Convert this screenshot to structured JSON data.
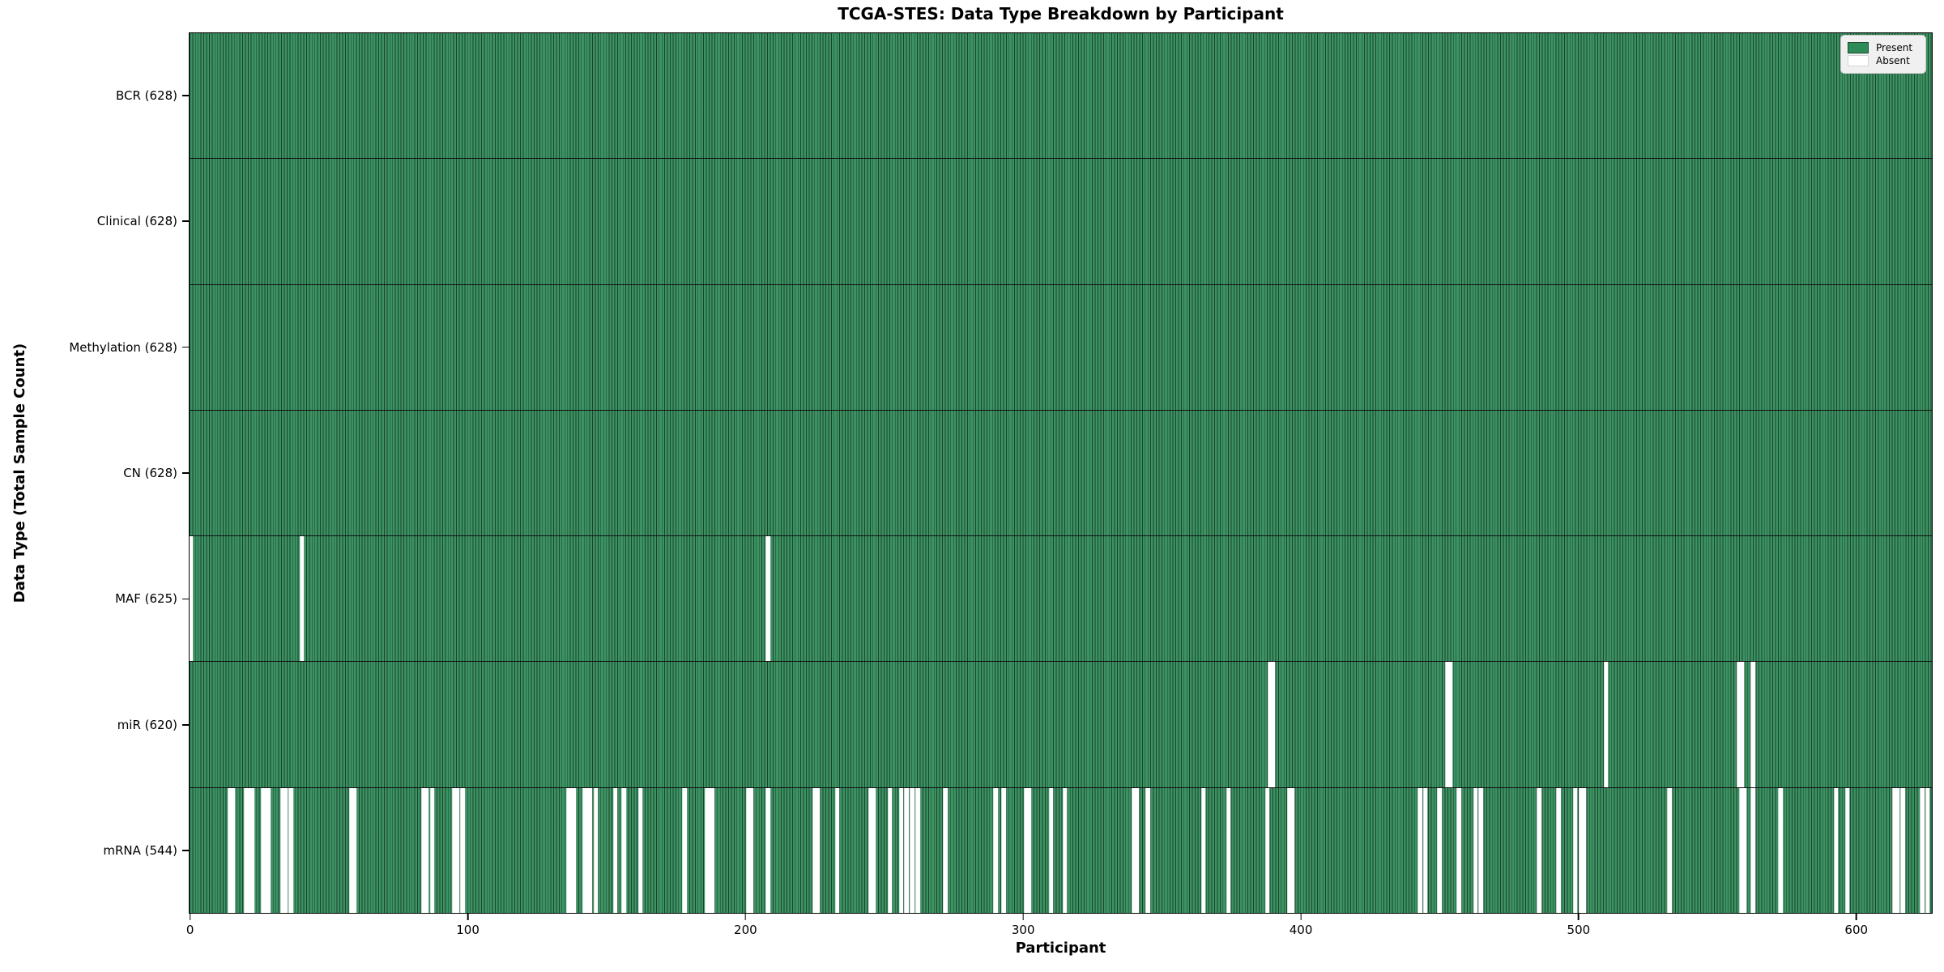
{
  "title": "TCGA-STES: Data Type Breakdown by Participant",
  "x_axis_label": "Participant",
  "y_axis_label": "Data Type (Total Sample Count)",
  "legend": {
    "present_label": "Present",
    "absent_label": "Absent"
  },
  "colors": {
    "present": "#2e8b57",
    "absent": "#ffffff",
    "bar_edge": "#102e1c",
    "row_separator": "#101010",
    "legend_bg": "#f0f0f0"
  },
  "chart_data": {
    "type": "heatmap",
    "title": "TCGA-STES: Data Type Breakdown by Participant",
    "xlabel": "Participant",
    "ylabel": "Data Type (Total Sample Count)",
    "legend_entries": [
      "Present",
      "Absent"
    ],
    "legend_position": "upper right",
    "grid": false,
    "n_participants": 628,
    "xlim": [
      -0.5,
      627.5
    ],
    "x_ticks": [
      0,
      100,
      200,
      300,
      400,
      500,
      600
    ],
    "rows": [
      {
        "label": "BCR (628)",
        "count": 628,
        "absent": []
      },
      {
        "label": "Clinical (628)",
        "count": 628,
        "absent": []
      },
      {
        "label": "Methylation (628)",
        "count": 628,
        "absent": []
      },
      {
        "label": "CN (628)",
        "count": 628,
        "absent": []
      },
      {
        "label": "MAF (625)",
        "count": 625,
        "absent": [
          0,
          40,
          208
        ]
      },
      {
        "label": "miR (620)",
        "count": 620,
        "absent": [
          389,
          390,
          453,
          454,
          510,
          558,
          559,
          563
        ]
      },
      {
        "label": "mRNA (544)",
        "count": 544,
        "absent": [
          14,
          15,
          20,
          21,
          22,
          26,
          27,
          28,
          33,
          34,
          36,
          58,
          59,
          84,
          85,
          87,
          95,
          96,
          98,
          136,
          137,
          138,
          142,
          143,
          144,
          146,
          153,
          156,
          162,
          178,
          186,
          187,
          188,
          201,
          202,
          208,
          225,
          226,
          233,
          245,
          246,
          252,
          256,
          258,
          260,
          262,
          272,
          290,
          293,
          301,
          302,
          310,
          315,
          340,
          341,
          345,
          365,
          374,
          388,
          396,
          397,
          443,
          445,
          450,
          457,
          463,
          465,
          486,
          493,
          499,
          501,
          502,
          533,
          559,
          560,
          563,
          573,
          593,
          597,
          614,
          615,
          617,
          624,
          626
        ]
      }
    ]
  }
}
